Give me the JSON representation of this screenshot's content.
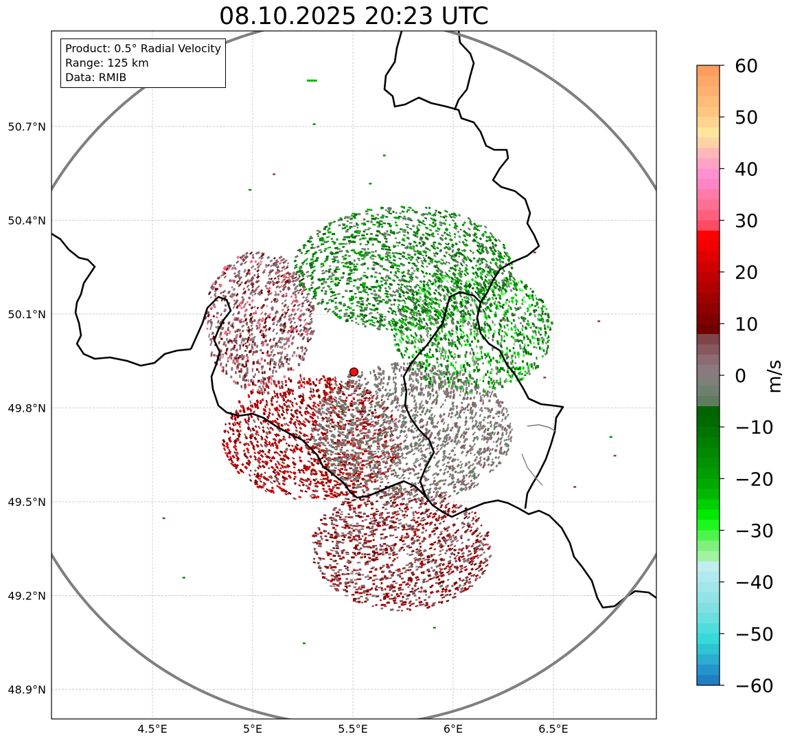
{
  "title": "08.10.2025 20:23 UTC",
  "info": {
    "product": "Product: 0.5° Radial Velocity",
    "range": "Range: 125 km",
    "source": "Data: RMIB"
  },
  "axes": {
    "x_ticks": [
      {
        "value": 4.5,
        "label": "4.5°E"
      },
      {
        "value": 5.0,
        "label": "5°E"
      },
      {
        "value": 5.5,
        "label": "5.5°E"
      },
      {
        "value": 6.0,
        "label": "6°E"
      },
      {
        "value": 6.5,
        "label": "6.5°E"
      }
    ],
    "y_ticks": [
      {
        "value": 50.7,
        "label": "50.7°N"
      },
      {
        "value": 50.4,
        "label": "50.4°N"
      },
      {
        "value": 50.1,
        "label": "50.1°N"
      },
      {
        "value": 49.8,
        "label": "49.8°N"
      },
      {
        "value": 49.5,
        "label": "49.5°N"
      },
      {
        "value": 49.2,
        "label": "49.2°N"
      },
      {
        "value": 48.9,
        "label": "48.9°N"
      }
    ],
    "lon_range": [
      4.0,
      7.0
    ],
    "lat_range": [
      48.8,
      51.0
    ]
  },
  "radar": {
    "site_lon": 5.505,
    "site_lat": 49.915,
    "range_km": 125
  },
  "colorbar": {
    "label": "m/s",
    "min": -60,
    "max": 60,
    "ticks": [
      60,
      50,
      40,
      30,
      20,
      10,
      0,
      -10,
      -20,
      -30,
      -40,
      -50,
      -60
    ],
    "tick_labels": [
      "60",
      "50",
      "40",
      "30",
      "20",
      "10",
      "0",
      "−10",
      "−20",
      "−30",
      "−40",
      "−50",
      "−60"
    ],
    "bands": [
      {
        "from": 58,
        "to": 60,
        "color": "#ff9c5e"
      },
      {
        "from": 56,
        "to": 58,
        "color": "#ffa766"
      },
      {
        "from": 54,
        "to": 56,
        "color": "#ffb06f"
      },
      {
        "from": 52,
        "to": 54,
        "color": "#ffbb78"
      },
      {
        "from": 50,
        "to": 52,
        "color": "#ffc67f"
      },
      {
        "from": 48,
        "to": 50,
        "color": "#ffd48f"
      },
      {
        "from": 46,
        "to": 48,
        "color": "#ffe49c"
      },
      {
        "from": 44,
        "to": 46,
        "color": "#ffd2a6"
      },
      {
        "from": 42,
        "to": 44,
        "color": "#ffb7b8"
      },
      {
        "from": 40,
        "to": 42,
        "color": "#ffa3c4"
      },
      {
        "from": 38,
        "to": 40,
        "color": "#ff8fd0"
      },
      {
        "from": 36,
        "to": 38,
        "color": "#ff86c2"
      },
      {
        "from": 34,
        "to": 36,
        "color": "#ff7aa8"
      },
      {
        "from": 32,
        "to": 34,
        "color": "#ff6f94"
      },
      {
        "from": 30,
        "to": 32,
        "color": "#ff5f7f"
      },
      {
        "from": 28,
        "to": 30,
        "color": "#ff4a66"
      },
      {
        "from": 26,
        "to": 28,
        "color": "#ff0000"
      },
      {
        "from": 24,
        "to": 26,
        "color": "#f00000"
      },
      {
        "from": 22,
        "to": 24,
        "color": "#e00000"
      },
      {
        "from": 20,
        "to": 22,
        "color": "#d00000"
      },
      {
        "from": 18,
        "to": 20,
        "color": "#c00000"
      },
      {
        "from": 16,
        "to": 18,
        "color": "#b00000"
      },
      {
        "from": 14,
        "to": 16,
        "color": "#a00000"
      },
      {
        "from": 12,
        "to": 14,
        "color": "#900000"
      },
      {
        "from": 10,
        "to": 12,
        "color": "#800000"
      },
      {
        "from": 8,
        "to": 10,
        "color": "#700000"
      },
      {
        "from": 6,
        "to": 8,
        "color": "#7f4448"
      },
      {
        "from": 4,
        "to": 6,
        "color": "#87585e"
      },
      {
        "from": 2,
        "to": 4,
        "color": "#8c6b74"
      },
      {
        "from": 0,
        "to": 2,
        "color": "#8a7a80"
      },
      {
        "from": -2,
        "to": 0,
        "color": "#7f8078"
      },
      {
        "from": -4,
        "to": -2,
        "color": "#6f8070"
      },
      {
        "from": -6,
        "to": -4,
        "color": "#5f7c5f"
      },
      {
        "from": -8,
        "to": -6,
        "color": "#006400"
      },
      {
        "from": -10,
        "to": -8,
        "color": "#006a00"
      },
      {
        "from": -12,
        "to": -10,
        "color": "#007400"
      },
      {
        "from": -14,
        "to": -12,
        "color": "#007e00"
      },
      {
        "from": -16,
        "to": -14,
        "color": "#008800"
      },
      {
        "from": -18,
        "to": -16,
        "color": "#009200"
      },
      {
        "from": -20,
        "to": -18,
        "color": "#009d00"
      },
      {
        "from": -22,
        "to": -20,
        "color": "#00a800"
      },
      {
        "from": -24,
        "to": -22,
        "color": "#00b800"
      },
      {
        "from": -26,
        "to": -24,
        "color": "#00d000"
      },
      {
        "from": -28,
        "to": -26,
        "color": "#00ea00"
      },
      {
        "from": -30,
        "to": -28,
        "color": "#1ef71e"
      },
      {
        "from": -32,
        "to": -30,
        "color": "#4cf54c"
      },
      {
        "from": -34,
        "to": -32,
        "color": "#7ef07e"
      },
      {
        "from": -36,
        "to": -34,
        "color": "#a0f3a0"
      },
      {
        "from": -38,
        "to": -36,
        "color": "#c0eef0"
      },
      {
        "from": -40,
        "to": -38,
        "color": "#b0eaee"
      },
      {
        "from": -42,
        "to": -40,
        "color": "#a2e6ea"
      },
      {
        "from": -44,
        "to": -42,
        "color": "#92e3e6"
      },
      {
        "from": -46,
        "to": -44,
        "color": "#80e0e2"
      },
      {
        "from": -48,
        "to": -46,
        "color": "#6adfe0"
      },
      {
        "from": -50,
        "to": -48,
        "color": "#50dcdc"
      },
      {
        "from": -52,
        "to": -50,
        "color": "#35dadb"
      },
      {
        "from": -54,
        "to": -52,
        "color": "#2fc4d4"
      },
      {
        "from": -56,
        "to": -54,
        "color": "#2aaed0"
      },
      {
        "from": -58,
        "to": -56,
        "color": "#2594cc"
      },
      {
        "from": -60,
        "to": -58,
        "color": "#1f7fc3"
      }
    ]
  },
  "regions": [
    {
      "name": "north-green-band",
      "lon": [
        5.2,
        6.3
      ],
      "lat": [
        50.05,
        50.45
      ],
      "color_set": [
        "#006400",
        "#007e00",
        "#009200",
        "#00a800",
        "#6f8070",
        "#5f7c5f"
      ]
    },
    {
      "name": "east-green-band",
      "lon": [
        5.7,
        6.5
      ],
      "lat": [
        49.85,
        50.25
      ],
      "color_set": [
        "#006400",
        "#007e00",
        "#009200",
        "#00d000",
        "#4cf54c",
        "#7f8078"
      ]
    },
    {
      "name": "southwest-red-core",
      "lon": [
        4.85,
        5.75
      ],
      "lat": [
        49.5,
        49.9
      ],
      "color_set": [
        "#c00000",
        "#b00000",
        "#900000",
        "#700000",
        "#e00000",
        "#87585e"
      ]
    },
    {
      "name": "south-red-band",
      "lon": [
        5.3,
        6.2
      ],
      "lat": [
        49.15,
        49.55
      ],
      "color_set": [
        "#900000",
        "#700000",
        "#7f4448",
        "#87585e",
        "#8c6b74",
        "#b00000"
      ]
    },
    {
      "name": "west-brown-band",
      "lon": [
        4.75,
        5.3
      ],
      "lat": [
        49.85,
        50.3
      ],
      "color_set": [
        "#7f4448",
        "#87585e",
        "#8c6b74",
        "#8a7a80",
        "#ff5f7f",
        "#700000"
      ]
    },
    {
      "name": "center-gray-core",
      "lon": [
        5.3,
        6.3
      ],
      "lat": [
        49.5,
        49.95
      ],
      "color_set": [
        "#8a7a80",
        "#7f8078",
        "#6f8070",
        "#8c6b74",
        "#87585e",
        "#5f7c5f"
      ]
    }
  ],
  "scatter_echoes": [
    [
      5.3,
      50.71
    ],
    [
      5.58,
      50.52
    ],
    [
      6.4,
      50.3
    ],
    [
      6.45,
      49.9
    ],
    [
      6.8,
      49.65
    ],
    [
      4.55,
      49.45
    ],
    [
      4.65,
      49.26
    ],
    [
      6.78,
      49.71
    ],
    [
      5.1,
      50.55
    ],
    [
      5.65,
      50.61
    ],
    [
      6.6,
      49.55
    ],
    [
      6.72,
      50.08
    ],
    [
      5.9,
      49.1
    ],
    [
      5.25,
      49.05
    ],
    [
      4.98,
      50.5
    ]
  ]
}
